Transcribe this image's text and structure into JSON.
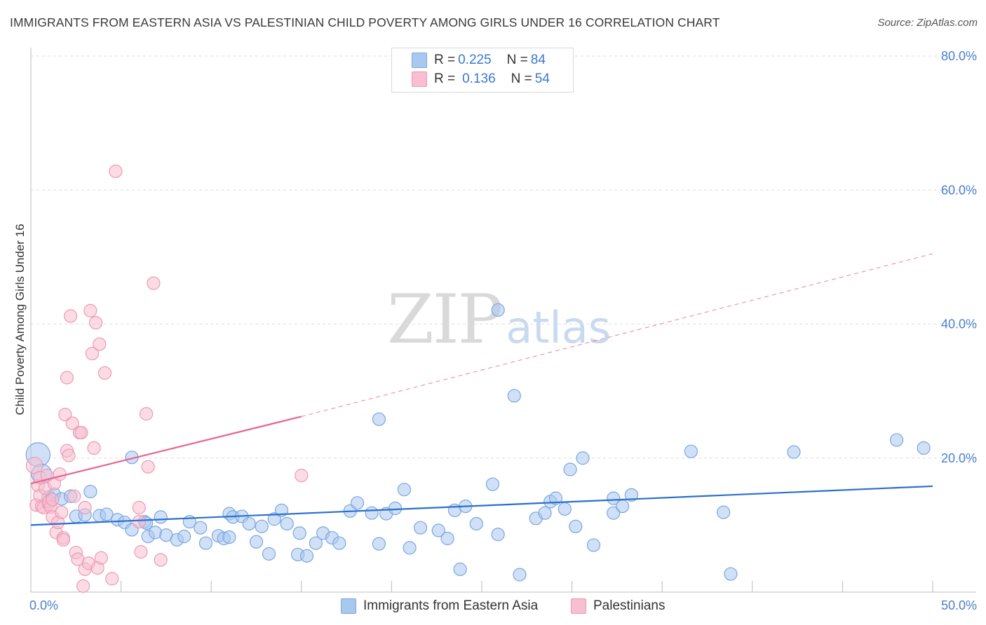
{
  "title": "IMMIGRANTS FROM EASTERN ASIA VS PALESTINIAN CHILD POVERTY AMONG GIRLS UNDER 16 CORRELATION CHART",
  "source": "Source: ZipAtlas.com",
  "watermark": {
    "zip": "ZIP",
    "atlas": "atlas"
  },
  "legend": {
    "rows": [
      {
        "r_label": "R = ",
        "r_value": "0.225",
        "n_label": "N = ",
        "n_value": "84"
      },
      {
        "r_label": "R = ",
        "r_value": "0.136",
        "n_label": "N = ",
        "n_value": "54"
      }
    ],
    "bottom": [
      "Immigrants from Eastern Asia",
      "Palestinians"
    ]
  },
  "colors": {
    "blue_fill": "#a9c8f0",
    "blue_stroke": "#7aa6e0",
    "blue_line": "#2a6fce",
    "pink_fill": "#f7bfd0",
    "pink_stroke": "#ee98b4",
    "pink_line": "#e8648e",
    "grid": "#dddddd",
    "axis": "#bbbbbb"
  },
  "chart_data": {
    "type": "scatter",
    "title": "IMMIGRANTS FROM EASTERN ASIA VS PALESTINIAN CHILD POVERTY AMONG GIRLS UNDER 16 CORRELATION CHART",
    "xlabel": "",
    "ylabel": "Child Poverty Among Girls Under 16",
    "xlim": [
      0,
      50
    ],
    "ylim": [
      0,
      80
    ],
    "x_tick_labels": [
      "0.0%",
      "50.0%"
    ],
    "y_ticks": [
      20,
      40,
      60,
      80
    ],
    "y_tick_labels": [
      "20.0%",
      "40.0%",
      "60.0%",
      "80.0%"
    ],
    "grid": true,
    "series": [
      {
        "name": "Immigrants from Eastern Asia",
        "color": "blue",
        "trend": {
          "x0": 0,
          "y0": 10.0,
          "x1": 50,
          "y1": 15.8
        },
        "points": [
          [
            0.4,
            20.5,
            1.9
          ],
          [
            0.6,
            17.6,
            1.6
          ],
          [
            1.0,
            14.1,
            1.1
          ],
          [
            1.3,
            14.6,
            1.0
          ],
          [
            1.7,
            13.9,
            1.0
          ],
          [
            2.2,
            14.3,
            1.0
          ],
          [
            2.5,
            11.3,
            1.0
          ],
          [
            3.0,
            11.5,
            1.0
          ],
          [
            3.3,
            15.0,
            1.0
          ],
          [
            3.8,
            11.4,
            1.0
          ],
          [
            4.2,
            11.6,
            1.0
          ],
          [
            4.8,
            10.8,
            1.0
          ],
          [
            5.2,
            10.4,
            1.0
          ],
          [
            5.6,
            9.3,
            1.0
          ],
          [
            5.6,
            20.1,
            1.0
          ],
          [
            6.3,
            10.5,
            1.0
          ],
          [
            6.4,
            10.3,
            1.0
          ],
          [
            6.5,
            8.3,
            1.0
          ],
          [
            6.9,
            8.9,
            1.0
          ],
          [
            7.2,
            11.2,
            1.0
          ],
          [
            7.5,
            8.5,
            1.0
          ],
          [
            8.1,
            7.8,
            1.0
          ],
          [
            8.5,
            8.3,
            1.0
          ],
          [
            8.8,
            10.5,
            1.0
          ],
          [
            9.4,
            9.6,
            1.0
          ],
          [
            9.7,
            7.3,
            1.0
          ],
          [
            10.4,
            8.4,
            1.0
          ],
          [
            10.7,
            8.0,
            1.0
          ],
          [
            11.0,
            8.2,
            1.0
          ],
          [
            11.0,
            11.7,
            1.0
          ],
          [
            11.2,
            11.2,
            1.0
          ],
          [
            11.7,
            11.3,
            1.0
          ],
          [
            12.1,
            10.2,
            1.0
          ],
          [
            12.5,
            7.5,
            1.0
          ],
          [
            12.8,
            9.8,
            1.0
          ],
          [
            13.2,
            5.7,
            1.0
          ],
          [
            13.5,
            10.9,
            1.0
          ],
          [
            13.9,
            12.2,
            1.0
          ],
          [
            14.2,
            10.2,
            1.0
          ],
          [
            14.8,
            5.6,
            1.0
          ],
          [
            14.9,
            8.8,
            1.0
          ],
          [
            15.3,
            5.4,
            1.0
          ],
          [
            15.8,
            7.3,
            1.0
          ],
          [
            16.2,
            8.8,
            1.0
          ],
          [
            16.7,
            8.1,
            1.0
          ],
          [
            17.1,
            7.3,
            1.0
          ],
          [
            17.7,
            12.1,
            1.0
          ],
          [
            18.1,
            13.3,
            1.0
          ],
          [
            18.9,
            11.8,
            1.0
          ],
          [
            19.3,
            7.2,
            1.0
          ],
          [
            19.3,
            25.8,
            1.0
          ],
          [
            19.7,
            11.7,
            1.0
          ],
          [
            20.2,
            12.5,
            1.0
          ],
          [
            20.7,
            15.3,
            1.0
          ],
          [
            21.0,
            6.6,
            1.0
          ],
          [
            21.6,
            9.6,
            1.0
          ],
          [
            22.6,
            9.2,
            1.0
          ],
          [
            23.1,
            8.0,
            1.0
          ],
          [
            23.5,
            12.2,
            1.0
          ],
          [
            23.8,
            3.4,
            1.0
          ],
          [
            24.1,
            12.8,
            1.0
          ],
          [
            24.7,
            10.2,
            1.0
          ],
          [
            25.6,
            16.1,
            1.0
          ],
          [
            25.9,
            8.6,
            1.0
          ],
          [
            25.9,
            42.1,
            1.0
          ],
          [
            26.8,
            29.3,
            1.0
          ],
          [
            27.1,
            2.6,
            1.0
          ],
          [
            28.0,
            11.0,
            1.0
          ],
          [
            28.5,
            11.8,
            1.0
          ],
          [
            28.8,
            13.5,
            1.0
          ],
          [
            29.1,
            14.0,
            1.0
          ],
          [
            29.6,
            12.4,
            1.0
          ],
          [
            29.9,
            18.3,
            1.0
          ],
          [
            30.2,
            9.8,
            1.0
          ],
          [
            30.6,
            20.0,
            1.0
          ],
          [
            31.2,
            7.0,
            1.0
          ],
          [
            32.3,
            11.8,
            1.0
          ],
          [
            32.3,
            14.0,
            1.0
          ],
          [
            32.8,
            12.8,
            1.0
          ],
          [
            33.3,
            14.5,
            1.0
          ],
          [
            36.6,
            21.0,
            1.0
          ],
          [
            38.4,
            11.9,
            1.0
          ],
          [
            38.8,
            2.7,
            1.0
          ],
          [
            42.3,
            20.9,
            1.0
          ],
          [
            48.0,
            22.7,
            1.0
          ],
          [
            49.5,
            21.5,
            1.0
          ]
        ]
      },
      {
        "name": "Palestinians",
        "color": "pink",
        "trend": {
          "x0": 0,
          "y0": 16.2,
          "x1": 15,
          "y1": 26.2,
          "dash_to_x": 50,
          "dash_to_y": 50.5
        },
        "points": [
          [
            0.2,
            18.9,
            1.3
          ],
          [
            0.3,
            13.0,
            1.0
          ],
          [
            0.4,
            15.9,
            1.0
          ],
          [
            0.5,
            17.1,
            1.0
          ],
          [
            0.5,
            14.4,
            1.0
          ],
          [
            0.6,
            12.8,
            1.0
          ],
          [
            0.7,
            12.6,
            1.0
          ],
          [
            0.8,
            15.5,
            1.0
          ],
          [
            0.9,
            17.4,
            1.0
          ],
          [
            1.0,
            13.1,
            1.0
          ],
          [
            1.0,
            13.5,
            1.0
          ],
          [
            1.1,
            12.7,
            1.0
          ],
          [
            1.2,
            13.8,
            1.0
          ],
          [
            1.2,
            11.2,
            1.0
          ],
          [
            1.3,
            16.2,
            1.0
          ],
          [
            1.4,
            8.9,
            1.0
          ],
          [
            1.5,
            10.4,
            1.0
          ],
          [
            1.6,
            17.6,
            1.0
          ],
          [
            1.7,
            11.9,
            1.0
          ],
          [
            1.8,
            8.1,
            1.0
          ],
          [
            1.8,
            7.8,
            1.0
          ],
          [
            1.9,
            26.5,
            1.0
          ],
          [
            2.0,
            32.0,
            1.0
          ],
          [
            2.0,
            21.1,
            1.0
          ],
          [
            2.1,
            20.4,
            1.0
          ],
          [
            2.2,
            41.2,
            1.0
          ],
          [
            2.3,
            25.2,
            1.0
          ],
          [
            2.4,
            14.3,
            1.0
          ],
          [
            2.5,
            5.9,
            1.0
          ],
          [
            2.6,
            4.9,
            1.0
          ],
          [
            2.7,
            23.8,
            1.0
          ],
          [
            2.8,
            23.8,
            1.0
          ],
          [
            3.0,
            12.6,
            1.0
          ],
          [
            3.0,
            3.4,
            1.0
          ],
          [
            3.2,
            4.3,
            1.0
          ],
          [
            3.3,
            42.0,
            1.0
          ],
          [
            3.4,
            35.6,
            1.0
          ],
          [
            3.5,
            21.5,
            1.0
          ],
          [
            3.6,
            40.2,
            1.0
          ],
          [
            3.7,
            3.6,
            1.0
          ],
          [
            3.8,
            37.0,
            1.0
          ],
          [
            3.9,
            5.1,
            1.0
          ],
          [
            4.1,
            32.7,
            1.0
          ],
          [
            4.5,
            2.0,
            1.0
          ],
          [
            4.7,
            62.8,
            1.0
          ],
          [
            6.0,
            12.6,
            1.0
          ],
          [
            6.0,
            10.5,
            1.0
          ],
          [
            6.1,
            6.0,
            1.0
          ],
          [
            6.4,
            26.6,
            1.0
          ],
          [
            6.5,
            18.7,
            1.0
          ],
          [
            6.8,
            46.1,
            1.0
          ],
          [
            7.2,
            4.8,
            1.0
          ],
          [
            15.0,
            17.4,
            1.0
          ],
          [
            2.9,
            0.9,
            1.0
          ]
        ]
      }
    ]
  }
}
